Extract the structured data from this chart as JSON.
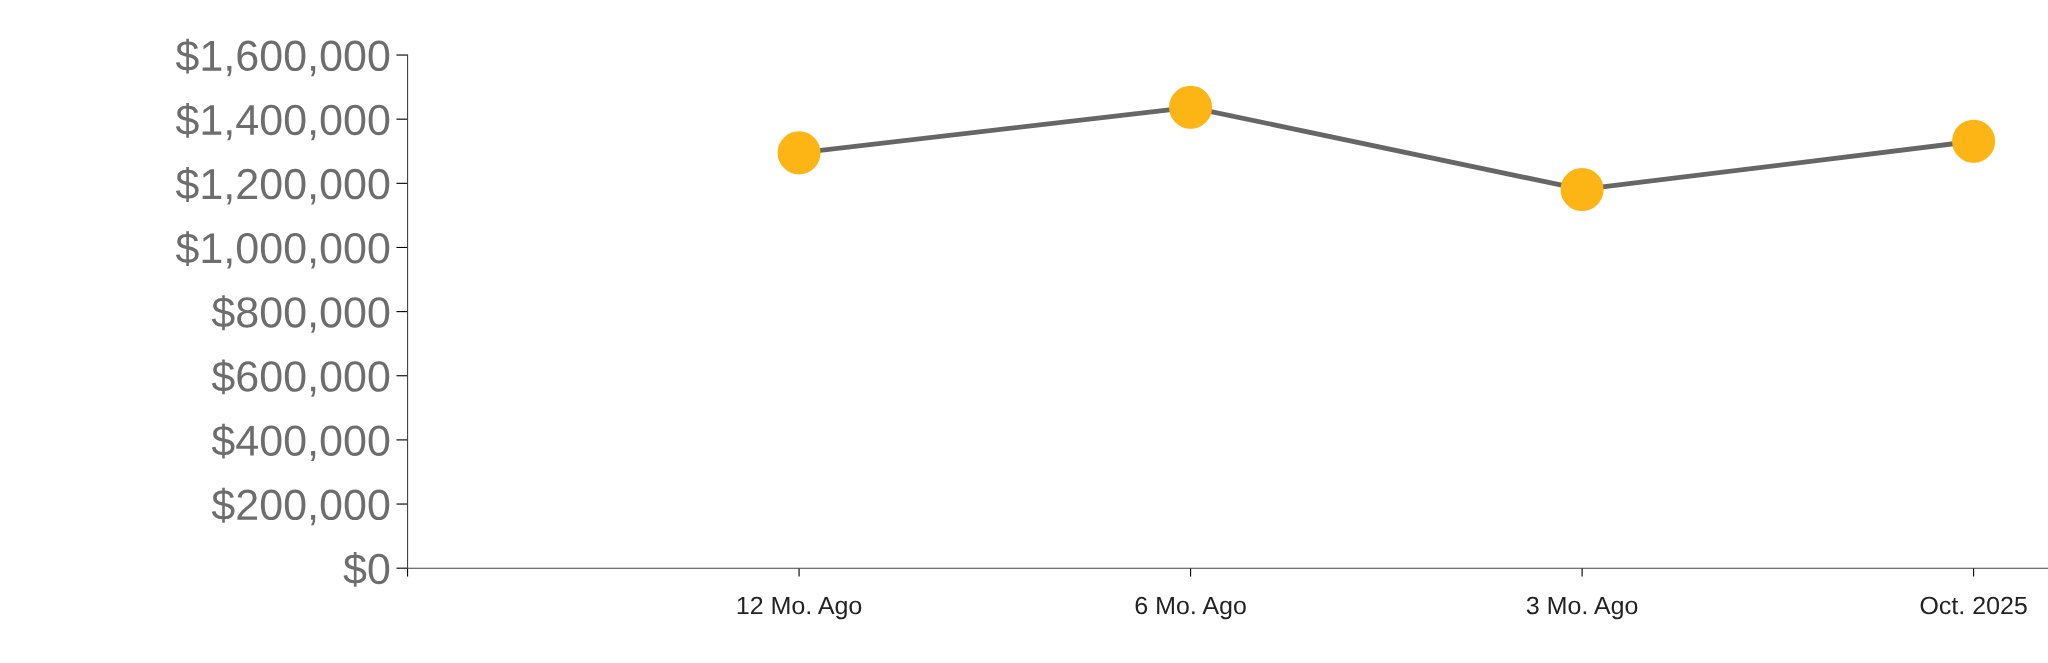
{
  "chart_data": {
    "type": "line",
    "categories": [
      null,
      "12 Mo. Ago",
      "6 Mo. Ago",
      "3 Mo. Ago",
      "Oct. 2025"
    ],
    "series": [
      {
        "color": "#666666",
        "colors": [
          null,
          "#fdb515",
          "#fdb515",
          "#fdb515",
          "#fdb515"
        ],
        "values": [
          null,
          1295000,
          1437000,
          1181000,
          1331000
        ]
      }
    ],
    "ylim": [
      0,
      1600000
    ],
    "yticks": [
      {
        "value": 0,
        "label": "$0"
      },
      {
        "value": 200000,
        "label": "$200,000"
      },
      {
        "value": 400000,
        "label": "$400,000"
      },
      {
        "value": 600000,
        "label": "$600,000"
      },
      {
        "value": 800000,
        "label": "$800,000"
      },
      {
        "value": 1000000,
        "label": "$1,000,000"
      },
      {
        "value": 1200000,
        "label": "$1,200,000"
      },
      {
        "value": 1400000,
        "label": "$1,400,000"
      },
      {
        "value": 1600000,
        "label": "$1,600,000"
      }
    ],
    "grid": false,
    "legend": false,
    "marker": "circle",
    "line_style": "solid"
  }
}
